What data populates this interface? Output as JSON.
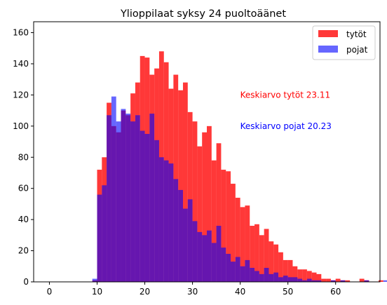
{
  "chart_data": {
    "type": "bar",
    "title": "Ylioppilaat syksy 24 puoltoäänet",
    "xlabel": "",
    "ylabel": "",
    "xlim": [
      -3.3,
      69.3
    ],
    "ylim": [
      0,
      167
    ],
    "xticks": [
      0,
      10,
      20,
      30,
      40,
      50,
      60
    ],
    "yticks": [
      0,
      20,
      40,
      60,
      80,
      100,
      120,
      140,
      160
    ],
    "grid": false,
    "legend_position": "top-right",
    "bin_start": 9,
    "bin_width": 1,
    "series": [
      {
        "name": "tytöt",
        "color": "#ff0000",
        "opacity": 0.78,
        "values": [
          1,
          72,
          80,
          115,
          100,
          96,
          110,
          107,
          121,
          128,
          145,
          144,
          133,
          137,
          148,
          141,
          124,
          133,
          123,
          128,
          109,
          103,
          87,
          96,
          100,
          78,
          89,
          72,
          71,
          63,
          54,
          48,
          49,
          36,
          37,
          30,
          34,
          26,
          24,
          19,
          14,
          14,
          10,
          8,
          8,
          7,
          6,
          5,
          2,
          2,
          1,
          2,
          1,
          1,
          0,
          0,
          2,
          1,
          0,
          0,
          1,
          0
        ]
      },
      {
        "name": "pojat",
        "color": "#0000ff",
        "opacity": 0.6,
        "values": [
          2,
          56,
          62,
          107,
          119,
          103,
          111,
          108,
          103,
          107,
          97,
          95,
          108,
          91,
          80,
          78,
          76,
          66,
          59,
          47,
          53,
          39,
          32,
          30,
          33,
          25,
          36,
          22,
          18,
          13,
          16,
          10,
          14,
          9,
          7,
          5,
          9,
          5,
          6,
          3,
          4,
          3,
          3,
          2,
          1,
          2,
          1,
          1,
          0,
          0,
          1,
          0,
          1,
          0,
          0,
          0,
          0,
          1,
          0,
          0,
          0,
          1
        ]
      }
    ],
    "annotations": [
      {
        "text": "Keskiarvo tytöt 23.11",
        "x": 40,
        "y": 120,
        "color": "#ff0000"
      },
      {
        "text": "Keskiarvo pojat 20.23",
        "x": 40,
        "y": 100,
        "color": "#0000ff"
      }
    ]
  }
}
